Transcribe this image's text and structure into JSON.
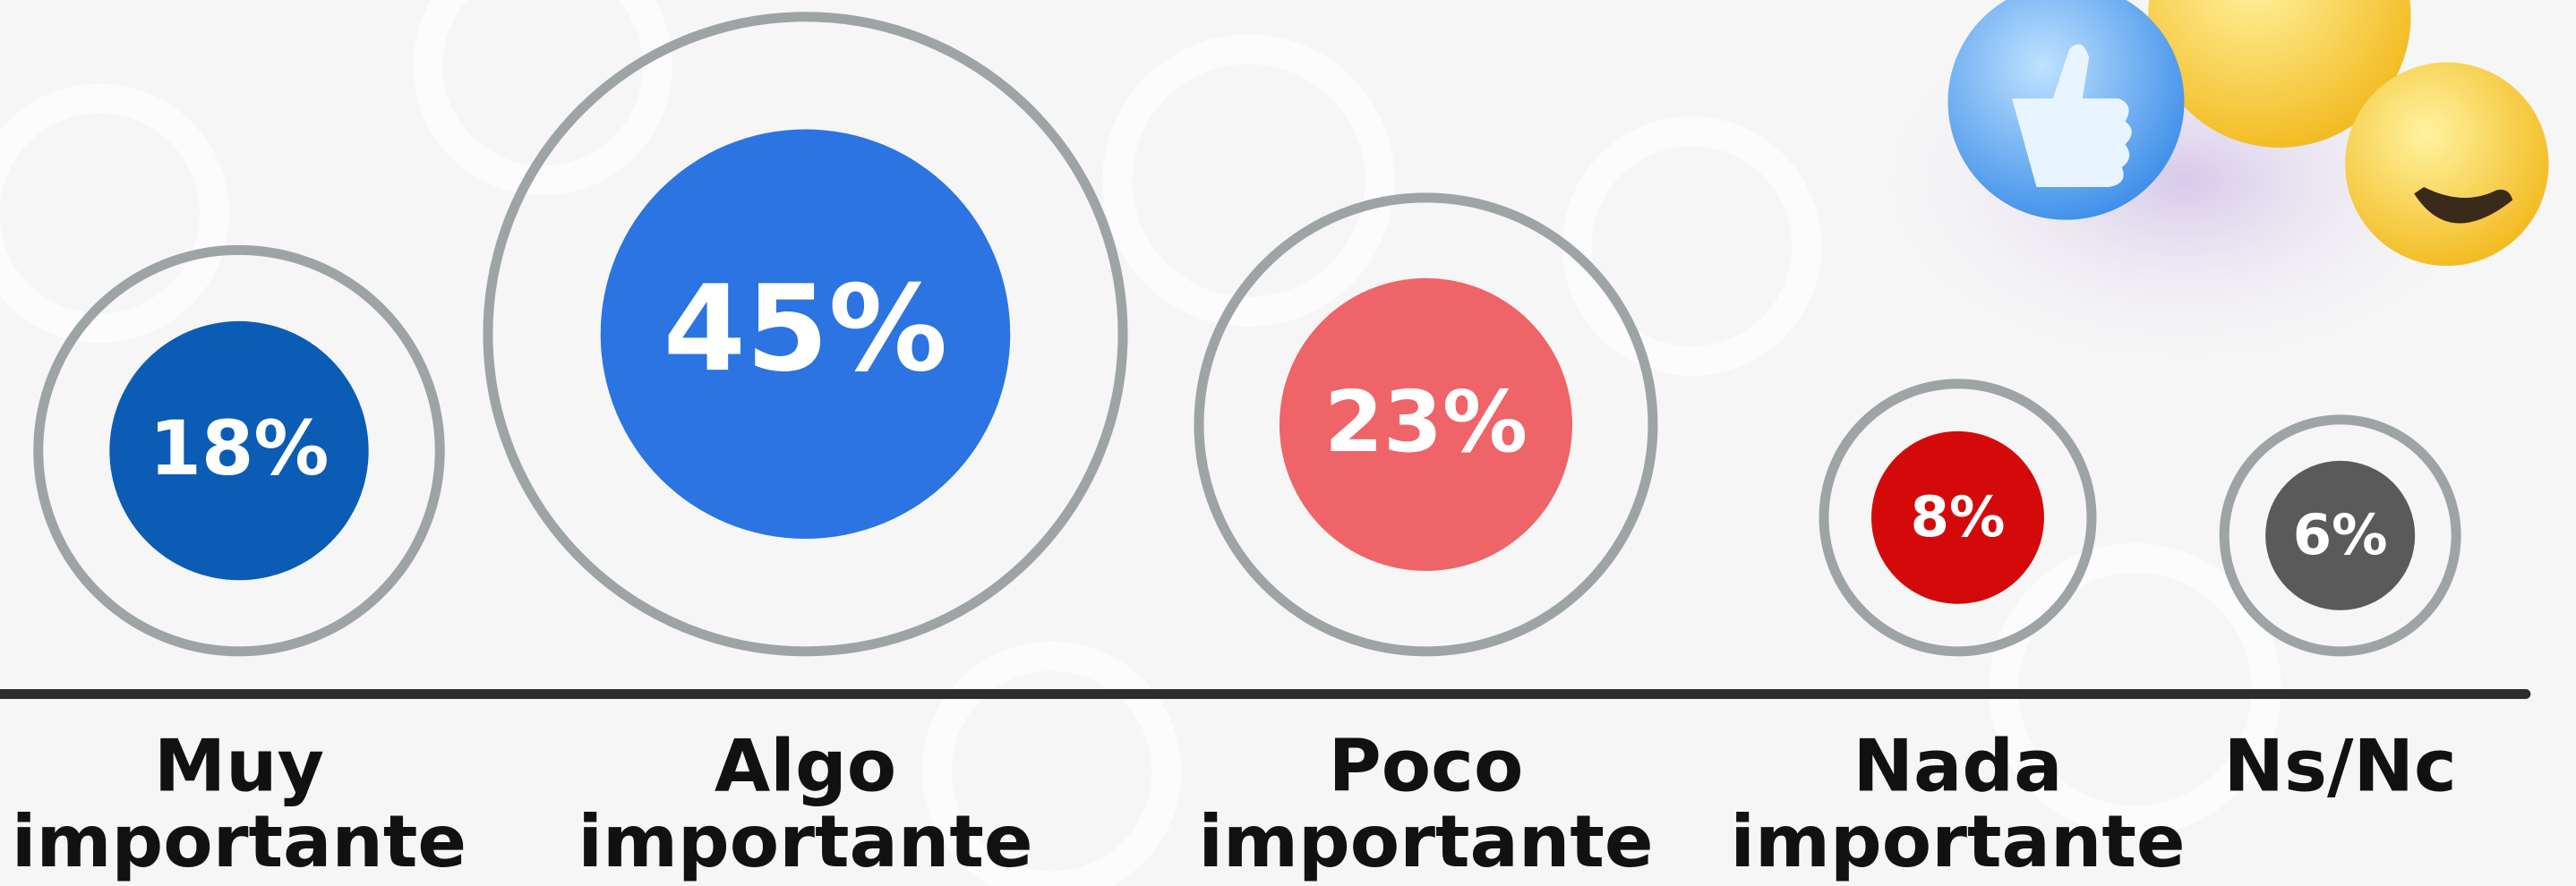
{
  "chart_data": {
    "type": "bubble",
    "categories": [
      "Muy importante",
      "Algo importante",
      "Poco importante",
      "Nada importante",
      "Ns/Nc"
    ],
    "values": [
      18,
      45,
      23,
      8,
      6
    ],
    "value_labels": [
      "18%",
      "45%",
      "23%",
      "8%",
      "6%"
    ],
    "colors": [
      "#0b5cb5",
      "#2b74e2",
      "#ef6468",
      "#d40a0a",
      "#5a5a5a"
    ]
  }
}
